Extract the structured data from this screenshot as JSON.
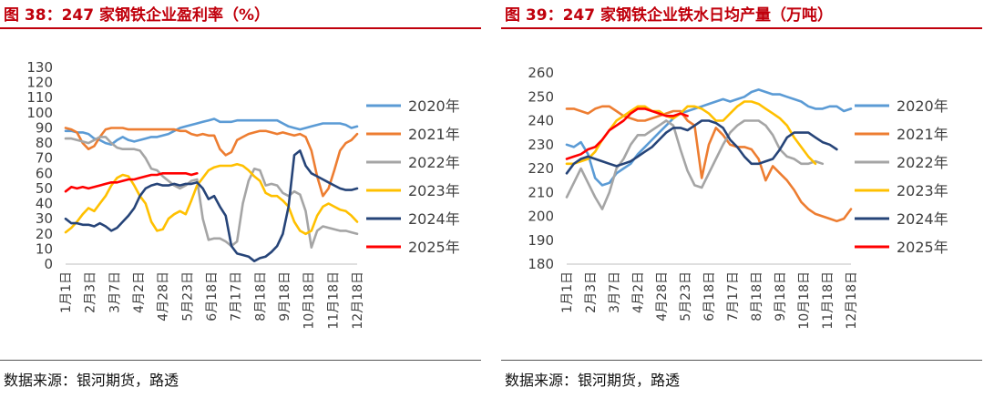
{
  "chart_data": [
    {
      "type": "line",
      "title": "图 38：247 家钢铁企业盈利率（%）",
      "source": "数据来源：银河期货，路透",
      "ylim": [
        0,
        130
      ],
      "yticks": [
        0,
        10,
        20,
        30,
        40,
        50,
        60,
        70,
        80,
        90,
        100,
        110,
        120,
        130
      ],
      "x_tick_labels": [
        "1月1日",
        "2月3日",
        "3月7日",
        "4月2日",
        "4月28日",
        "5月23日",
        "6月18日",
        "7月17日",
        "8月18日",
        "9月18日",
        "10月18日",
        "11月18日",
        "12月18日"
      ],
      "grid": false,
      "legend_position": "right",
      "series": [
        {
          "name": "2020年",
          "color": "#5b9bd5",
          "values": [
            88,
            88,
            87,
            87,
            86,
            83,
            82,
            80,
            79,
            82,
            84,
            82,
            81,
            82,
            83,
            84,
            84,
            85,
            86,
            88,
            90,
            91,
            92,
            93,
            94,
            95,
            96,
            94,
            94,
            94,
            95,
            95,
            95,
            95,
            95,
            95,
            95,
            95,
            93,
            91,
            90,
            89,
            90,
            91,
            92,
            93,
            93,
            93,
            93,
            92,
            90,
            91
          ]
        },
        {
          "name": "2021年",
          "color": "#ed7d31",
          "values": [
            90,
            89,
            87,
            80,
            76,
            78,
            84,
            89,
            90,
            90,
            90,
            89,
            89,
            89,
            89,
            89,
            89,
            89,
            89,
            89,
            88,
            88,
            86,
            85,
            86,
            85,
            85,
            76,
            72,
            74,
            82,
            84,
            86,
            87,
            88,
            88,
            87,
            86,
            87,
            86,
            85,
            86,
            84,
            75,
            58,
            45,
            50,
            62,
            75,
            80,
            82,
            86
          ]
        },
        {
          "name": "2022年",
          "color": "#a5a5a5",
          "values": [
            83,
            83,
            82,
            81,
            80,
            82,
            84,
            84,
            80,
            77,
            76,
            76,
            76,
            75,
            70,
            63,
            62,
            58,
            55,
            52,
            50,
            52,
            55,
            56,
            30,
            16,
            17,
            17,
            15,
            12,
            15,
            40,
            55,
            63,
            62,
            52,
            53,
            52,
            47,
            45,
            48,
            46,
            35,
            11,
            22,
            25,
            24,
            23,
            22,
            22,
            21,
            20
          ]
        },
        {
          "name": "2023年",
          "color": "#ffc000",
          "values": [
            21,
            24,
            28,
            33,
            37,
            35,
            40,
            45,
            52,
            57,
            59,
            58,
            52,
            45,
            40,
            28,
            22,
            23,
            30,
            33,
            35,
            33,
            42,
            52,
            57,
            62,
            64,
            65,
            65,
            65,
            66,
            65,
            62,
            58,
            55,
            47,
            45,
            45,
            42,
            38,
            28,
            22,
            20,
            22,
            32,
            38,
            40,
            38,
            36,
            35,
            32,
            28
          ]
        },
        {
          "name": "2024年",
          "color": "#264478",
          "values": [
            30,
            27,
            27,
            26,
            26,
            25,
            27,
            25,
            22,
            24,
            28,
            32,
            37,
            45,
            50,
            52,
            53,
            52,
            52,
            53,
            52,
            53,
            53,
            54,
            50,
            43,
            45,
            38,
            32,
            12,
            7,
            6,
            5,
            2,
            4,
            5,
            8,
            12,
            20,
            38,
            72,
            75,
            65,
            60,
            58,
            56,
            54,
            52,
            50,
            49,
            49,
            50
          ]
        },
        {
          "name": "2025年",
          "color": "#ff0000",
          "values": [
            48,
            51,
            50,
            51,
            50,
            51,
            52,
            53,
            54,
            54,
            55,
            56,
            56,
            57,
            58,
            59,
            59,
            60,
            60,
            60,
            60,
            60,
            59,
            60
          ]
        }
      ]
    },
    {
      "type": "line",
      "title": "图 39：247 家钢铁企业铁水日均产量（万吨）",
      "source": "数据来源：银河期货，路透",
      "ylim": [
        180,
        260
      ],
      "yticks": [
        180,
        190,
        200,
        210,
        220,
        230,
        240,
        250,
        260
      ],
      "x_tick_labels": [
        "1月1日",
        "2月3日",
        "3月7日",
        "4月2日",
        "4月28日",
        "5月23日",
        "6月18日",
        "7月17日",
        "8月18日",
        "9月18日",
        "10月18日",
        "11月18日",
        "12月18日"
      ],
      "grid": false,
      "legend_position": "right",
      "series": [
        {
          "name": "2020年",
          "color": "#5b9bd5",
          "values": [
            230,
            229,
            231,
            226,
            216,
            213,
            214,
            218,
            220,
            222,
            226,
            229,
            232,
            235,
            238,
            241,
            243,
            244,
            245,
            246,
            247,
            248,
            249,
            248,
            249,
            250,
            252,
            253,
            252,
            251,
            251,
            250,
            249,
            248,
            246,
            245,
            245,
            246,
            246,
            244,
            245
          ]
        },
        {
          "name": "2021年",
          "color": "#ed7d31",
          "values": [
            245,
            245,
            244,
            243,
            245,
            246,
            246,
            244,
            242,
            241,
            240,
            240,
            241,
            242,
            243,
            244,
            244,
            240,
            238,
            216,
            230,
            237,
            234,
            230,
            229,
            229,
            228,
            224,
            215,
            221,
            218,
            215,
            211,
            206,
            203,
            201,
            200,
            199,
            198,
            199,
            203
          ]
        },
        {
          "name": "2022年",
          "color": "#a5a5a5",
          "values": [
            208,
            214,
            220,
            214,
            208,
            203,
            210,
            220,
            224,
            230,
            234,
            234,
            236,
            238,
            240,
            238,
            228,
            219,
            213,
            212,
            218,
            224,
            230,
            235,
            238,
            240,
            240,
            240,
            238,
            234,
            228,
            225,
            224,
            222,
            222,
            223,
            222
          ]
        },
        {
          "name": "2023年",
          "color": "#ffc000",
          "values": [
            222,
            222,
            223,
            224,
            227,
            232,
            236,
            240,
            242,
            244,
            246,
            246,
            244,
            244,
            242,
            241,
            243,
            246,
            246,
            245,
            243,
            240,
            240,
            243,
            246,
            248,
            248,
            247,
            245,
            243,
            241,
            238,
            233,
            229,
            225,
            222
          ]
        },
        {
          "name": "2024年",
          "color": "#264478",
          "values": [
            218,
            222,
            224,
            225,
            224,
            223,
            222,
            221,
            222,
            223,
            225,
            227,
            229,
            232,
            235,
            237,
            237,
            236,
            238,
            240,
            240,
            239,
            237,
            232,
            229,
            225,
            222,
            222,
            223,
            224,
            228,
            233,
            235,
            235,
            235,
            233,
            231,
            230,
            228
          ]
        },
        {
          "name": "2025年",
          "color": "#ff0000",
          "values": [
            224,
            225,
            226,
            228,
            229,
            232,
            236,
            238,
            240,
            243,
            245,
            245,
            244,
            243,
            242,
            242,
            243,
            242
          ]
        }
      ]
    }
  ]
}
